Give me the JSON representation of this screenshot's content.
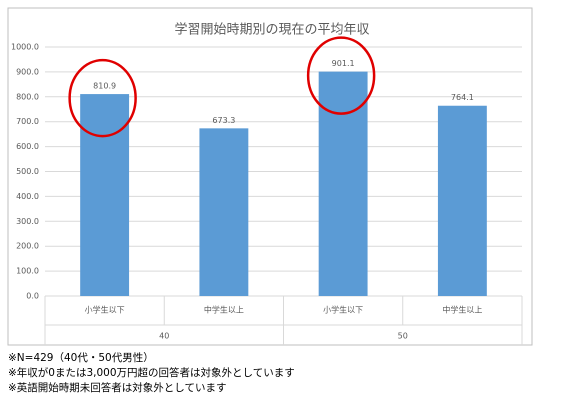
{
  "chart_data": {
    "type": "bar",
    "title": "学習開始時期別の現在の平均年収",
    "categories": [
      "小学生以下",
      "中学生以上",
      "小学生以下",
      "中学生以上"
    ],
    "groups": [
      "40",
      "50"
    ],
    "values": [
      810.9,
      673.3,
      901.1,
      764.1
    ],
    "color": "#5b9bd5",
    "ylim": [
      0,
      1000
    ],
    "yticks": [
      {
        "value": 0,
        "label": "0.0"
      },
      {
        "value": 100,
        "label": "100.0"
      },
      {
        "value": 200,
        "label": "200.0"
      },
      {
        "value": 300,
        "label": "300.0"
      },
      {
        "value": 400,
        "label": "400.0"
      },
      {
        "value": 500,
        "label": "500.0"
      },
      {
        "value": 600,
        "label": "600.0"
      },
      {
        "value": 700,
        "label": "700.0"
      },
      {
        "value": 800,
        "label": "800.0"
      },
      {
        "value": 900,
        "label": "900.0"
      },
      {
        "value": 1000,
        "label": "1000.0"
      }
    ],
    "grid": true,
    "notes": [
      "※N=429（40代・50代男性）",
      "※年収が0または3,000万円超の回答者は対象外としています",
      "※英語開始時期未回答者は対象外としています"
    ]
  }
}
